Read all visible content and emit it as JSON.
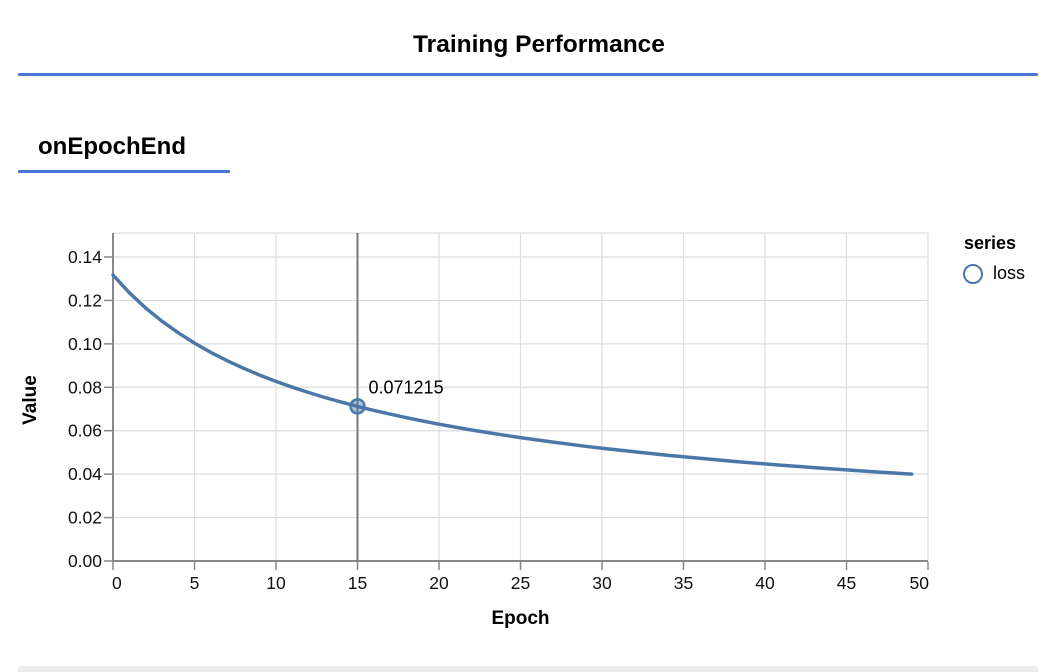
{
  "header": {
    "title": "Training Performance"
  },
  "section": {
    "title": "onEpochEnd"
  },
  "legend": {
    "title": "series",
    "items": [
      {
        "label": "loss",
        "color": "#4c78a8"
      }
    ]
  },
  "colors": {
    "accent_rule": "#4478d2",
    "series_line": "#4c78a8",
    "gridline": "#dddddd",
    "axis_line": "#888888",
    "hover_rule": "#777777",
    "bottom_strip": "#ececec"
  },
  "chart_data": {
    "type": "line",
    "title": "onEpochEnd",
    "xlabel": "Epoch",
    "ylabel": "Value",
    "xlim": [
      0,
      50
    ],
    "ylim": [
      0,
      0.15
    ],
    "grid": true,
    "legend_position": "right",
    "legend_title": "series",
    "x_ticks": [
      "0",
      "5",
      "10",
      "15",
      "20",
      "25",
      "30",
      "35",
      "40",
      "45",
      "50"
    ],
    "y_ticks": [
      "0.00",
      "0.02",
      "0.04",
      "0.06",
      "0.08",
      "0.10",
      "0.12",
      "0.14"
    ],
    "series": [
      {
        "name": "loss",
        "color": "#4c78a8",
        "x": [
          0,
          1,
          2,
          3,
          4,
          5,
          6,
          7,
          8,
          9,
          10,
          11,
          12,
          13,
          14,
          15,
          16,
          17,
          18,
          19,
          20,
          21,
          22,
          23,
          24,
          25,
          26,
          27,
          28,
          29,
          30,
          31,
          32,
          33,
          34,
          35,
          36,
          37,
          38,
          39,
          40,
          41,
          42,
          43,
          44,
          45,
          46,
          47,
          48,
          49
        ],
        "values": [
          0.1317,
          0.123542,
          0.116535,
          0.110442,
          0.10513,
          0.10033,
          0.096078,
          0.092247,
          0.088775,
          0.085613,
          0.082716,
          0.080052,
          0.077591,
          0.075311,
          0.073192,
          0.071215,
          0.069365,
          0.067631,
          0.066,
          0.064464,
          0.063014,
          0.061643,
          0.060344,
          0.05911,
          0.057937,
          0.056822,
          0.055758,
          0.054741,
          0.05377,
          0.052842,
          0.051952,
          0.051098,
          0.050279,
          0.049492,
          0.048734,
          0.048005,
          0.047301,
          0.046623,
          0.04597,
          0.045338,
          0.044728,
          0.044137,
          0.043565,
          0.043012,
          0.042476,
          0.041956,
          0.041451,
          0.040963,
          0.040487,
          0.040026
        ]
      }
    ],
    "highlight": {
      "x": 15,
      "y": 0.071215,
      "label": "0.071215"
    }
  }
}
